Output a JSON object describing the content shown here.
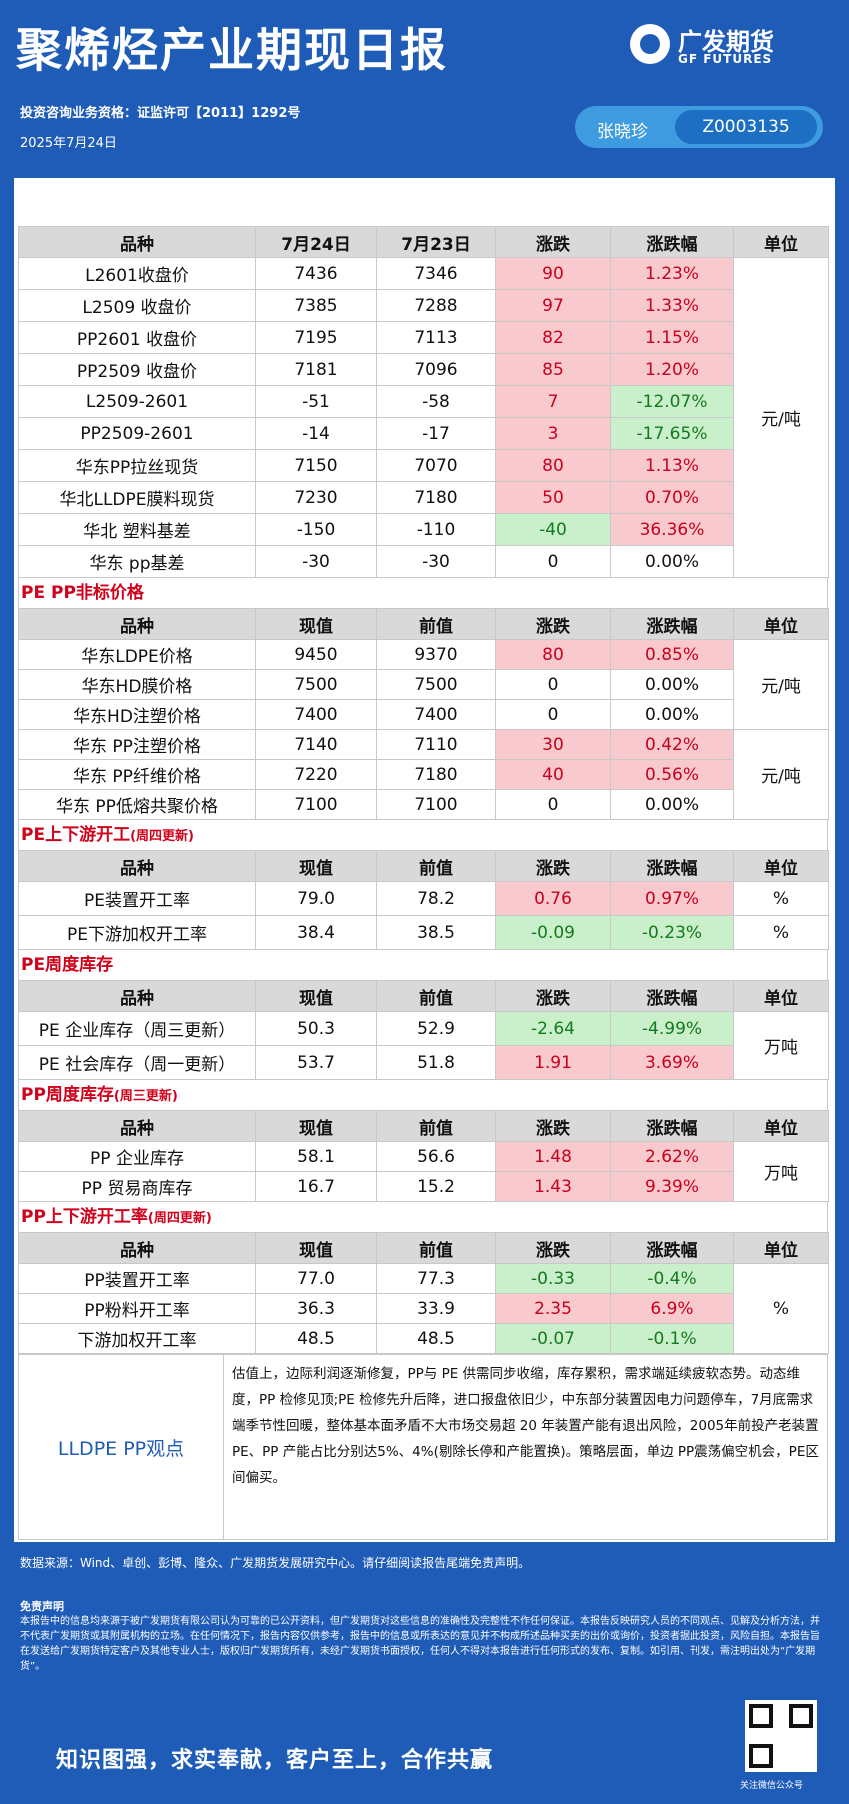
{
  "header": {
    "title": "聚烯烃产业期现日报",
    "logo_cn": "广发期货",
    "logo_en": "GF FUTURES",
    "license": "投资咨询业务资格：证监许可【2011】1292号",
    "date": "2025年7月24日",
    "analyst": "张晓珍",
    "analyst_id": "Z0003135"
  },
  "tables": [
    {
      "section": null,
      "section_note": null,
      "header": [
        "品种",
        "7月24日",
        "7月23日",
        "涨跌",
        "涨跌幅",
        "单位"
      ],
      "rows": [
        {
          "cells": [
            "L2601收盘价",
            "7436",
            "7346",
            "90",
            "1.23%"
          ],
          "colors": [
            "red",
            "red"
          ]
        },
        {
          "cells": [
            "L2509 收盘价",
            "7385",
            "7288",
            "97",
            "1.33%"
          ],
          "colors": [
            "red",
            "red"
          ]
        },
        {
          "cells": [
            "PP2601 收盘价",
            "7195",
            "7113",
            "82",
            "1.15%"
          ],
          "colors": [
            "red",
            "red"
          ]
        },
        {
          "cells": [
            "PP2509 收盘价",
            "7181",
            "7096",
            "85",
            "1.20%"
          ],
          "colors": [
            "red",
            "red"
          ]
        },
        {
          "cells": [
            "L2509-2601",
            "-51",
            "-58",
            "7",
            "-12.07%"
          ],
          "colors": [
            "red",
            "green"
          ]
        },
        {
          "cells": [
            "PP2509-2601",
            "-14",
            "-17",
            "3",
            "-17.65%"
          ],
          "colors": [
            "red",
            "green"
          ]
        },
        {
          "cells": [
            "华东PP拉丝现货",
            "7150",
            "7070",
            "80",
            "1.13%"
          ],
          "colors": [
            "red",
            "red"
          ]
        },
        {
          "cells": [
            "华北LLDPE膜料现货",
            "7230",
            "7180",
            "50",
            "0.70%"
          ],
          "colors": [
            "red",
            "red"
          ]
        },
        {
          "cells": [
            "华北 塑料基差",
            "-150",
            "-110",
            "-40",
            "36.36%"
          ],
          "colors": [
            "green",
            "red"
          ]
        },
        {
          "cells": [
            "华东 pp基差",
            "-30",
            "-30",
            "0",
            "0.00%"
          ],
          "colors": [
            null,
            null
          ]
        }
      ],
      "units": [
        "元/吨",
        null,
        null,
        null,
        null,
        null,
        null,
        null,
        null,
        null
      ]
    },
    {
      "section": "PE PP非标价格",
      "section_note": null,
      "header": [
        "品种",
        "现值",
        "前值",
        "涨跌",
        "涨跌幅",
        "单位"
      ],
      "rows": [
        {
          "cells": [
            "华东LDPE价格",
            "9450",
            "9370",
            "80",
            "0.85%"
          ],
          "colors": [
            "red",
            "red"
          ]
        },
        {
          "cells": [
            "华东HD膜价格",
            "7500",
            "7500",
            "0",
            "0.00%"
          ],
          "colors": [
            null,
            null
          ]
        },
        {
          "cells": [
            "华东HD注塑价格",
            "7400",
            "7400",
            "0",
            "0.00%"
          ],
          "colors": [
            null,
            null
          ]
        },
        {
          "cells": [
            "华东 PP注塑价格",
            "7140",
            "7110",
            "30",
            "0.42%"
          ],
          "colors": [
            "red",
            "red"
          ]
        },
        {
          "cells": [
            "华东 PP纤维价格",
            "7220",
            "7180",
            "40",
            "0.56%"
          ],
          "colors": [
            "red",
            "red"
          ]
        },
        {
          "cells": [
            "华东 PP低熔共聚价格",
            "7100",
            "7100",
            "0",
            "0.00%"
          ],
          "colors": [
            null,
            null
          ]
        }
      ],
      "units": [
        "元/吨",
        null,
        null,
        "元/吨",
        null,
        null
      ]
    },
    {
      "section": "PE上下游开工",
      "section_note": "(周四更新)",
      "header": [
        "品种",
        "现值",
        "前值",
        "涨跌",
        "涨跌幅",
        "单位"
      ],
      "rows": [
        {
          "cells": [
            "PE装置开工率",
            "79.0",
            "78.2",
            "0.76",
            "0.97%"
          ],
          "colors": [
            "red",
            "red"
          ]
        },
        {
          "cells": [
            "PE下游加权开工率",
            "38.4",
            "38.5",
            "-0.09",
            "-0.23%"
          ],
          "colors": [
            "green",
            "green"
          ]
        }
      ],
      "units": [
        "%",
        "%"
      ]
    },
    {
      "section": "PE周度库存",
      "section_note": null,
      "header": [
        "品种",
        "现值",
        "前值",
        "涨跌",
        "涨跌幅",
        "单位"
      ],
      "rows": [
        {
          "cells": [
            "PE 企业库存（周三更新）",
            "50.3",
            "52.9",
            "-2.64",
            "-4.99%"
          ],
          "colors": [
            "green",
            "green"
          ]
        },
        {
          "cells": [
            "PE 社会库存（周一更新）",
            "53.7",
            "51.8",
            "1.91",
            "3.69%"
          ],
          "colors": [
            "red",
            "red"
          ]
        }
      ],
      "units": [
        "万吨",
        null
      ]
    },
    {
      "section": "PP周度库存",
      "section_note": "(周三更新)",
      "header": [
        "品种",
        "现值",
        "前值",
        "涨跌",
        "涨跌幅",
        "单位"
      ],
      "rows": [
        {
          "cells": [
            "PP 企业库存",
            "58.1",
            "56.6",
            "1.48",
            "2.62%"
          ],
          "colors": [
            "red",
            "red"
          ]
        },
        {
          "cells": [
            "PP 贸易商库存",
            "16.7",
            "15.2",
            "1.43",
            "9.39%"
          ],
          "colors": [
            "red",
            "red"
          ]
        }
      ],
      "units": [
        "万吨",
        null
      ]
    },
    {
      "section": "PP上下游开工率",
      "section_note": "(周四更新)",
      "header": [
        "品种",
        "现值",
        "前值",
        "涨跌",
        "涨跌幅",
        "单位"
      ],
      "rows": [
        {
          "cells": [
            "PP装置开工率",
            "77.0",
            "77.3",
            "-0.33",
            "-0.4%"
          ],
          "colors": [
            "green",
            "green"
          ]
        },
        {
          "cells": [
            "PP粉料开工率",
            "36.3",
            "33.9",
            "2.35",
            "6.9%"
          ],
          "colors": [
            "red",
            "red"
          ]
        },
        {
          "cells": [
            "下游加权开工率",
            "48.5",
            "48.5",
            "-0.07",
            "-0.1%"
          ],
          "colors": [
            "green",
            "green"
          ]
        }
      ],
      "units": [
        "%",
        null,
        null
      ]
    }
  ],
  "viewpoint": {
    "label": "LLDPE  PP观点",
    "text": "估值上，边际利润逐渐修复，PP与 PE 供需同步收缩，库存累积，需求端延续疲软态势。动态维度，PP 检修见顶;PE 检修先升后降，进口报盘依旧少，中东部分装置因电力问题停车，7月底需求端季节性回暖，整体基本面矛盾不大市场交易超 20 年装置产能有退出风险，2005年前投产老装置PE、PP 产能占比分别达5%、4%(剔除长停和产能置换)。策略层面，单边 PP震荡偏空机会，PE区间偏买。"
  },
  "footer": {
    "source": "数据来源：Wind、卓创、彭博、隆众、广发期货发展研究中心。请仔细阅读报告尾端免责声明。",
    "disclaimer_title": "免责声明",
    "disclaimer": "本报告中的信息均来源于被广发期货有限公司认为可靠的已公开资料，但广发期货对这些信息的准确性及完整性不作任何保证。本报告反映研究人员的不同观点、见解及分析方法，并不代表广发期货或其附属机构的立场。在任何情况下，报告内容仅供参考，报告中的信息或所表达的意见并不构成所述品种买卖的出价或询价，投资者据此投资，风险自担。本报告旨在发送给广发期货特定客户及其他专业人士，版权归广发期货所有，未经广发期货书面授权，任何人不得对本报告进行任何形式的发布、复制。如引用、刊发，需注明出处为“广发期货”。",
    "qr_caption": "关注微信公众号",
    "slogan": "知识图强，求实奉献，客户至上，合作共赢"
  }
}
